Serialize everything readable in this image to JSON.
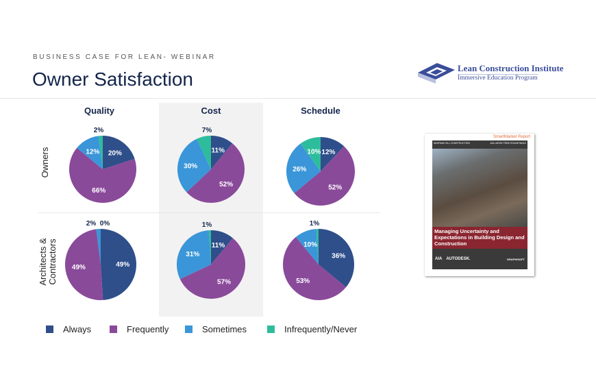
{
  "header": {
    "kicker": "BUSINESS CASE FOR LEAN- WEBINAR",
    "title": "Owner Satisfaction"
  },
  "logo": {
    "name": "Lean Construction Institute",
    "subtitle": "Immersive Education Program"
  },
  "report": {
    "brand": "SmartMarket Report",
    "publisher": "McGRAW HILL CONSTRUCTION",
    "partner": "AIA LARGE FIRM ROUNDTABLE",
    "title": "Managing Uncertainty and Expectations in Building Design and Construction",
    "sponsors": [
      "AIA",
      "AUTODESK.",
      "GRAPHISOFT"
    ]
  },
  "chart_data": {
    "type": "pie",
    "columns": [
      "Quality",
      "Cost",
      "Schedule"
    ],
    "rows": [
      "Owners",
      "Architects & Contractors"
    ],
    "categories": [
      "Always",
      "Frequently",
      "Sometimes",
      "Infrequently/Never"
    ],
    "colors": [
      "#2f4f8a",
      "#8a4a9a",
      "#3a96d8",
      "#2ebd9c"
    ],
    "pies": [
      {
        "row": "Owners",
        "column": "Quality",
        "values": [
          20,
          66,
          12,
          2
        ]
      },
      {
        "row": "Owners",
        "column": "Cost",
        "values": [
          11,
          52,
          30,
          7
        ]
      },
      {
        "row": "Owners",
        "column": "Schedule",
        "values": [
          12,
          52,
          26,
          10
        ]
      },
      {
        "row": "Architects & Contractors",
        "column": "Quality",
        "values": [
          49,
          49,
          2,
          0
        ]
      },
      {
        "row": "Architects & Contractors",
        "column": "Cost",
        "values": [
          11,
          57,
          31,
          1
        ]
      },
      {
        "row": "Architects & Contractors",
        "column": "Schedule",
        "values": [
          36,
          53,
          10,
          1
        ]
      }
    ],
    "legend": "bottom"
  }
}
